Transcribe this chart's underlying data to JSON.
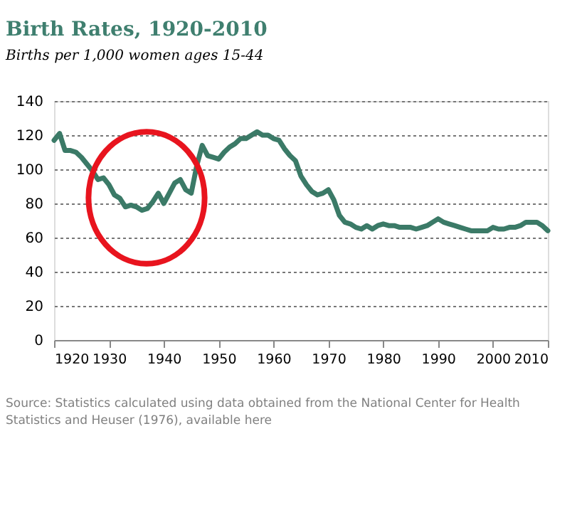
{
  "chart_data": {
    "type": "line",
    "title": "Birth Rates, 1920-2010",
    "subtitle": "Births per 1,000 women ages 15-44",
    "annotations": [
      "Source: Statistics calculated using data obtained from the National Center for Health Statistics and Heuser (1976), available here"
    ],
    "x": [
      1920,
      1921,
      1922,
      1923,
      1924,
      1925,
      1926,
      1927,
      1928,
      1929,
      1930,
      1931,
      1932,
      1933,
      1934,
      1935,
      1936,
      1937,
      1938,
      1939,
      1940,
      1941,
      1942,
      1943,
      1944,
      1945,
      1946,
      1947,
      1948,
      1949,
      1950,
      1951,
      1952,
      1953,
      1954,
      1955,
      1956,
      1957,
      1958,
      1959,
      1960,
      1961,
      1962,
      1963,
      1964,
      1965,
      1966,
      1967,
      1968,
      1969,
      1970,
      1971,
      1972,
      1973,
      1974,
      1975,
      1976,
      1977,
      1978,
      1979,
      1980,
      1981,
      1982,
      1983,
      1984,
      1985,
      1986,
      1987,
      1988,
      1989,
      1990,
      1991,
      1992,
      1993,
      1994,
      1995,
      1996,
      1997,
      1998,
      1999,
      2000,
      2001,
      2002,
      2003,
      2004,
      2005,
      2006,
      2007,
      2008,
      2009,
      2010
    ],
    "series": [
      {
        "color": "#3b7a67",
        "values": [
          117,
          121,
          111,
          111,
          110,
          107,
          103,
          99,
          94,
          95,
          91,
          85,
          83,
          78,
          79,
          78,
          76,
          77,
          81,
          86,
          80,
          86,
          92,
          94,
          88,
          86,
          102,
          114,
          108,
          107,
          106,
          110,
          113,
          115,
          118,
          118,
          120,
          122,
          120,
          120,
          118,
          117,
          112,
          108,
          105,
          96,
          91,
          87,
          85,
          86,
          88,
          82,
          73,
          69,
          68,
          66,
          65,
          67,
          65,
          67,
          68,
          67,
          67,
          66,
          66,
          66,
          65,
          66,
          67,
          69,
          71,
          69,
          68,
          67,
          66,
          65,
          64,
          64,
          64,
          64,
          66,
          65,
          65,
          66,
          66,
          67,
          69,
          69,
          69,
          67,
          64
        ]
      }
    ],
    "xlim": [
      1920,
      2010
    ],
    "xticks": [
      1920,
      1930,
      1940,
      1950,
      1960,
      1970,
      1980,
      1990,
      2000,
      2010
    ],
    "ylim": [
      0,
      140
    ],
    "yticks": [
      0,
      20,
      40,
      60,
      80,
      100,
      120,
      140
    ],
    "grid": "y",
    "line_style": "solid",
    "marker": "none"
  }
}
